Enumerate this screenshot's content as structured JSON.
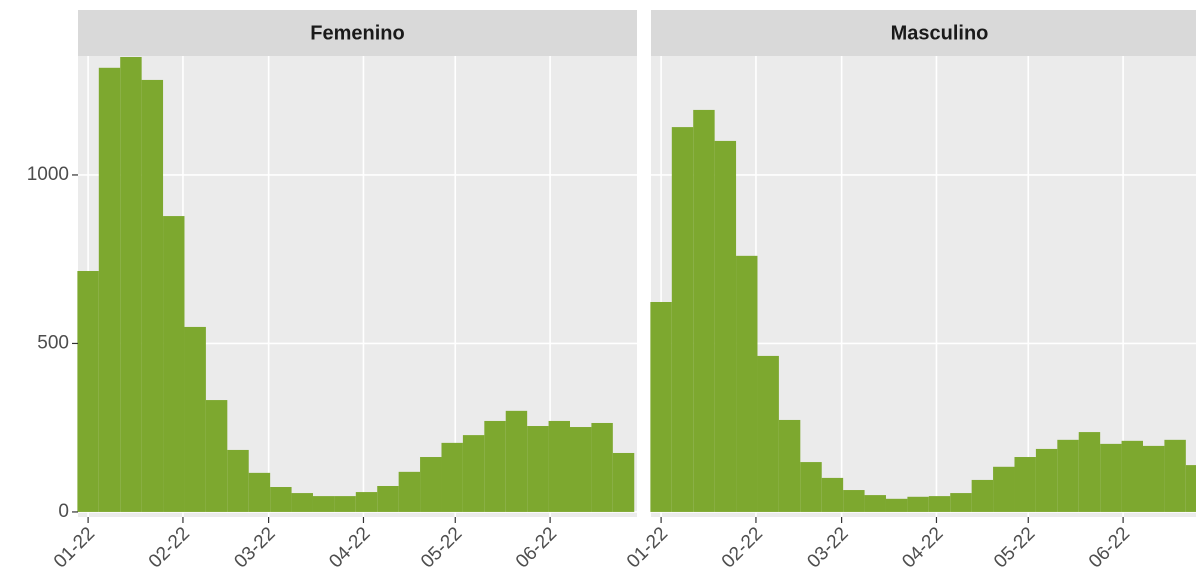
{
  "chart_data": [
    {
      "type": "histogram",
      "title": "Femenino",
      "color": "#7da82f",
      "bins": [
        -3.5,
        3.5,
        10.5,
        17.5,
        24.5,
        31.5,
        38.5,
        45.5,
        52.5,
        59.5,
        66.5,
        73.5,
        80.5,
        87.5,
        94.5,
        101.5,
        108.5,
        115.5,
        122.5,
        129.5,
        136.5,
        143.5,
        150.5,
        157.5,
        164.5,
        171.5,
        178.5
      ],
      "values": [
        715,
        1318,
        1350,
        1282,
        878,
        549,
        332,
        184,
        116,
        74,
        56,
        47,
        47,
        59,
        77,
        119,
        163,
        205,
        228,
        270,
        300,
        255,
        270,
        252,
        264,
        175
      ],
      "xlim": [
        -3.3,
        179.4
      ],
      "ylim": [
        -15,
        1353
      ],
      "xticks": [
        {
          "value": 0,
          "label": "01-22"
        },
        {
          "value": 31,
          "label": "02-22"
        },
        {
          "value": 59,
          "label": "03-22"
        },
        {
          "value": 90,
          "label": "04-22"
        },
        {
          "value": 120,
          "label": "05-22"
        },
        {
          "value": 151,
          "label": "06-22"
        }
      ],
      "yticks": [
        0,
        500,
        1000
      ],
      "grid": true
    },
    {
      "type": "histogram",
      "title": "Masculino",
      "color": "#7da82f",
      "bins": [
        -3.5,
        3.5,
        10.5,
        17.5,
        24.5,
        31.5,
        38.5,
        45.5,
        52.5,
        59.5,
        66.5,
        73.5,
        80.5,
        87.5,
        94.5,
        101.5,
        108.5,
        115.5,
        122.5,
        129.5,
        136.5,
        143.5,
        150.5,
        157.5,
        164.5,
        171.5,
        178.5
      ],
      "values": [
        623,
        1142,
        1193,
        1101,
        760,
        463,
        273,
        148,
        101,
        65,
        50,
        39,
        45,
        47,
        56,
        95,
        134,
        163,
        187,
        214,
        237,
        202,
        211,
        196,
        214,
        139
      ],
      "xlim": [
        -3.3,
        179.4
      ],
      "ylim": [
        -15,
        1353
      ],
      "xticks": [
        {
          "value": 0,
          "label": "01-22"
        },
        {
          "value": 31,
          "label": "02-22"
        },
        {
          "value": 59,
          "label": "03-22"
        },
        {
          "value": 90,
          "label": "04-22"
        },
        {
          "value": 120,
          "label": "05-22"
        },
        {
          "value": 151,
          "label": "06-22"
        }
      ],
      "yticks": [
        0,
        500,
        1000
      ],
      "grid": true
    }
  ]
}
